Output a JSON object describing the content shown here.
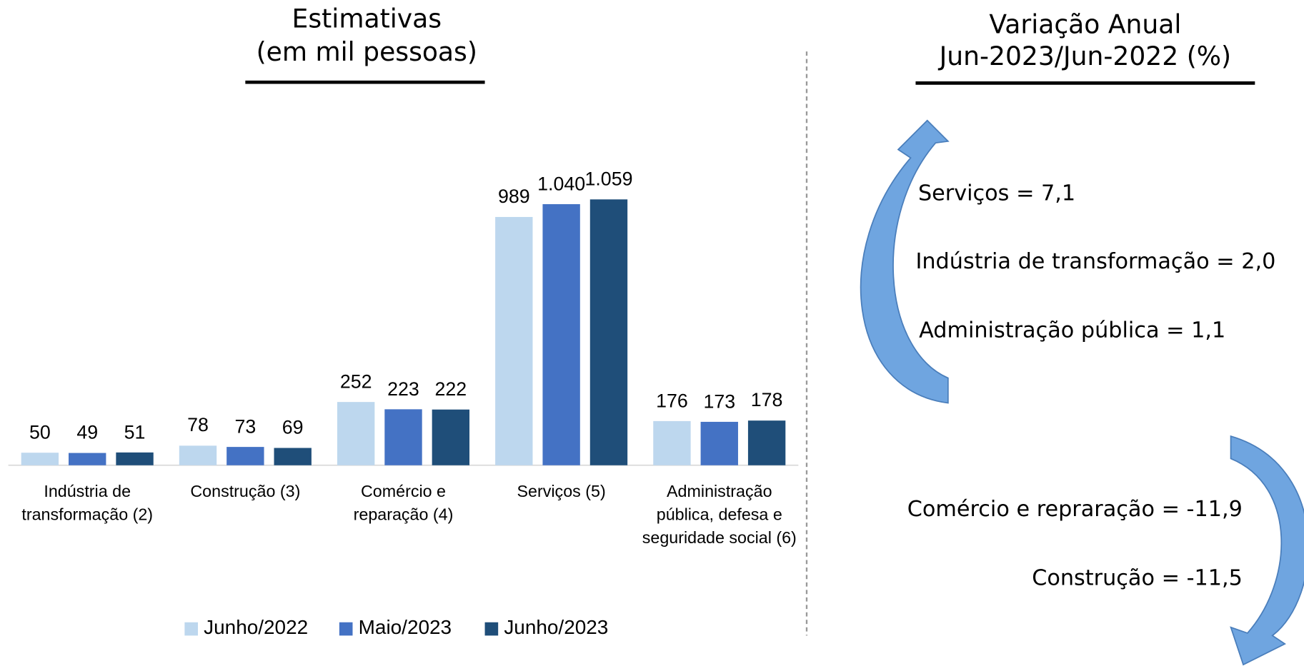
{
  "chart_data": {
    "type": "bar",
    "title": "Estimativas",
    "subtitle": "(em mil pessoas)",
    "categories": [
      "Indústria de transformação (2)",
      "Construção (3)",
      "Comércio e reparação (4)",
      "Serviços (5)",
      "Administração pública, defesa e seguridade social (6)"
    ],
    "series": [
      {
        "name": "Junho/2022",
        "color": "#bdd7ee",
        "values": [
          50,
          78,
          252,
          989,
          176
        ],
        "value_labels": [
          "50",
          "78",
          "252",
          "989",
          "176"
        ]
      },
      {
        "name": "Maio/2023",
        "color": "#4472c4",
        "values": [
          49,
          73,
          223,
          1040,
          173
        ],
        "value_labels": [
          "49",
          "73",
          "223",
          "1.040",
          "173"
        ]
      },
      {
        "name": "Junho/2023",
        "color": "#1f4e79",
        "values": [
          51,
          69,
          222,
          1059,
          178
        ],
        "value_labels": [
          "51",
          "69",
          "222",
          "1.059",
          "178"
        ]
      }
    ],
    "legend": "bottom"
  },
  "variation": {
    "title": "Variação Anual",
    "subtitle": "Jun-2023/Jun-2022 (%)",
    "increases": [
      "Serviços = 7,1",
      "Indústria de transformação = 2,0",
      "Administração pública = 1,1"
    ],
    "decreases": [
      "Comércio e repraração = -11,9",
      "Construção = -11,5"
    ]
  }
}
